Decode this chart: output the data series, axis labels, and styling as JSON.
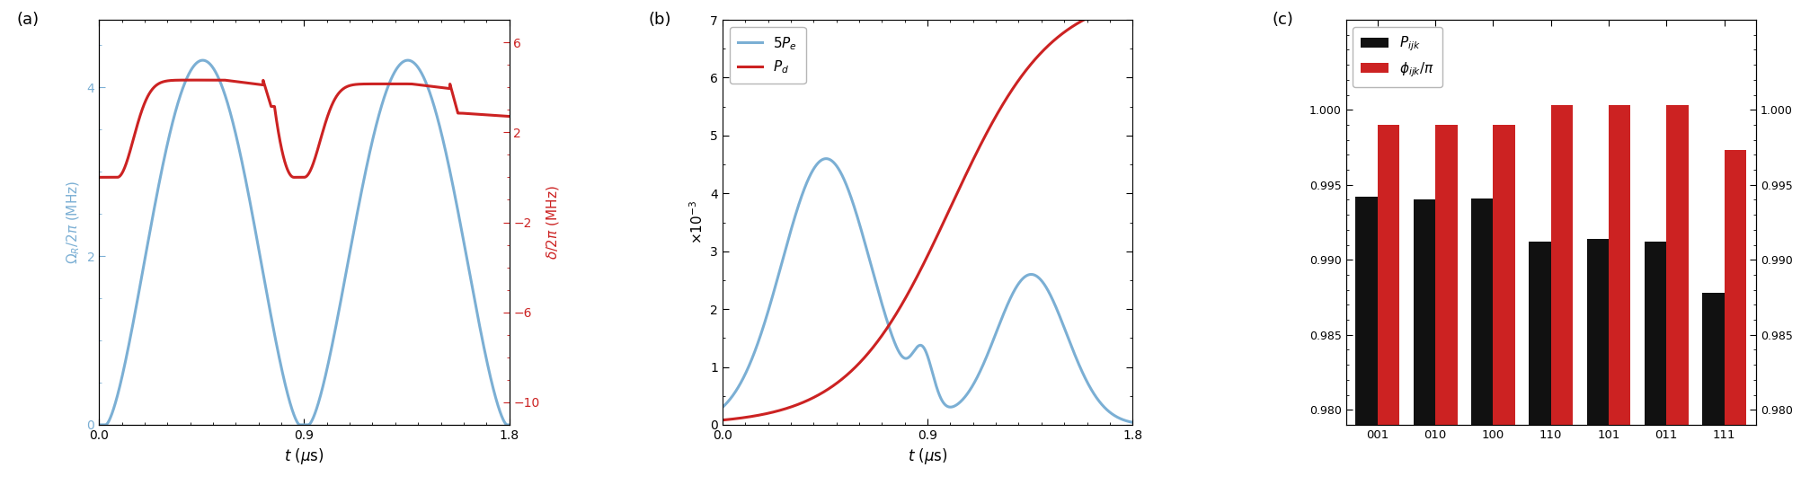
{
  "panel_a": {
    "label": "(a)",
    "left_ylabel": "$\\Omega_R/2\\pi$ (MHz)",
    "right_ylabel": "$\\delta/2\\pi$ (MHz)",
    "xlabel": "$t$ ($\\mu$s)",
    "left_color": "#7bafd4",
    "right_color": "#cc2222",
    "left_ylim": [
      0,
      4.8
    ],
    "right_ylim": [
      -11,
      7
    ],
    "xlim": [
      0,
      1.8
    ],
    "left_yticks": [
      0,
      2,
      4
    ],
    "right_yticks": [
      -10,
      -6,
      -2,
      2,
      6
    ],
    "xticks": [
      0,
      0.9,
      1.8
    ]
  },
  "panel_b": {
    "label": "(b)",
    "ylabel": "$\\times10^{-3}$",
    "xlabel": "$t$ ($\\mu$s)",
    "blue_color": "#7bafd4",
    "red_color": "#cc2222",
    "ylim": [
      0,
      7
    ],
    "xlim": [
      0,
      1.8
    ],
    "yticks": [
      0,
      1,
      2,
      3,
      4,
      5,
      6,
      7
    ],
    "xticks": [
      0,
      0.9,
      1.8
    ],
    "legend_blue": "$5P_e$",
    "legend_red": "$P_d$"
  },
  "panel_c": {
    "label": "(c)",
    "categories": [
      "001",
      "010",
      "100",
      "110",
      "101",
      "011",
      "111"
    ],
    "black_values": [
      0.9942,
      0.994,
      0.9941,
      0.9912,
      0.9914,
      0.9912,
      0.9878
    ],
    "red_values": [
      0.999,
      0.999,
      0.999,
      1.0003,
      1.0003,
      1.0003,
      0.9973
    ],
    "black_color": "#111111",
    "red_color": "#cc2222",
    "ylim": [
      0.979,
      1.006
    ],
    "yticks": [
      0.98,
      0.985,
      0.99,
      0.995,
      1.0
    ],
    "legend_black": "$P_{ijk}$",
    "legend_red": "$\\phi_{ijk}/\\pi$"
  }
}
